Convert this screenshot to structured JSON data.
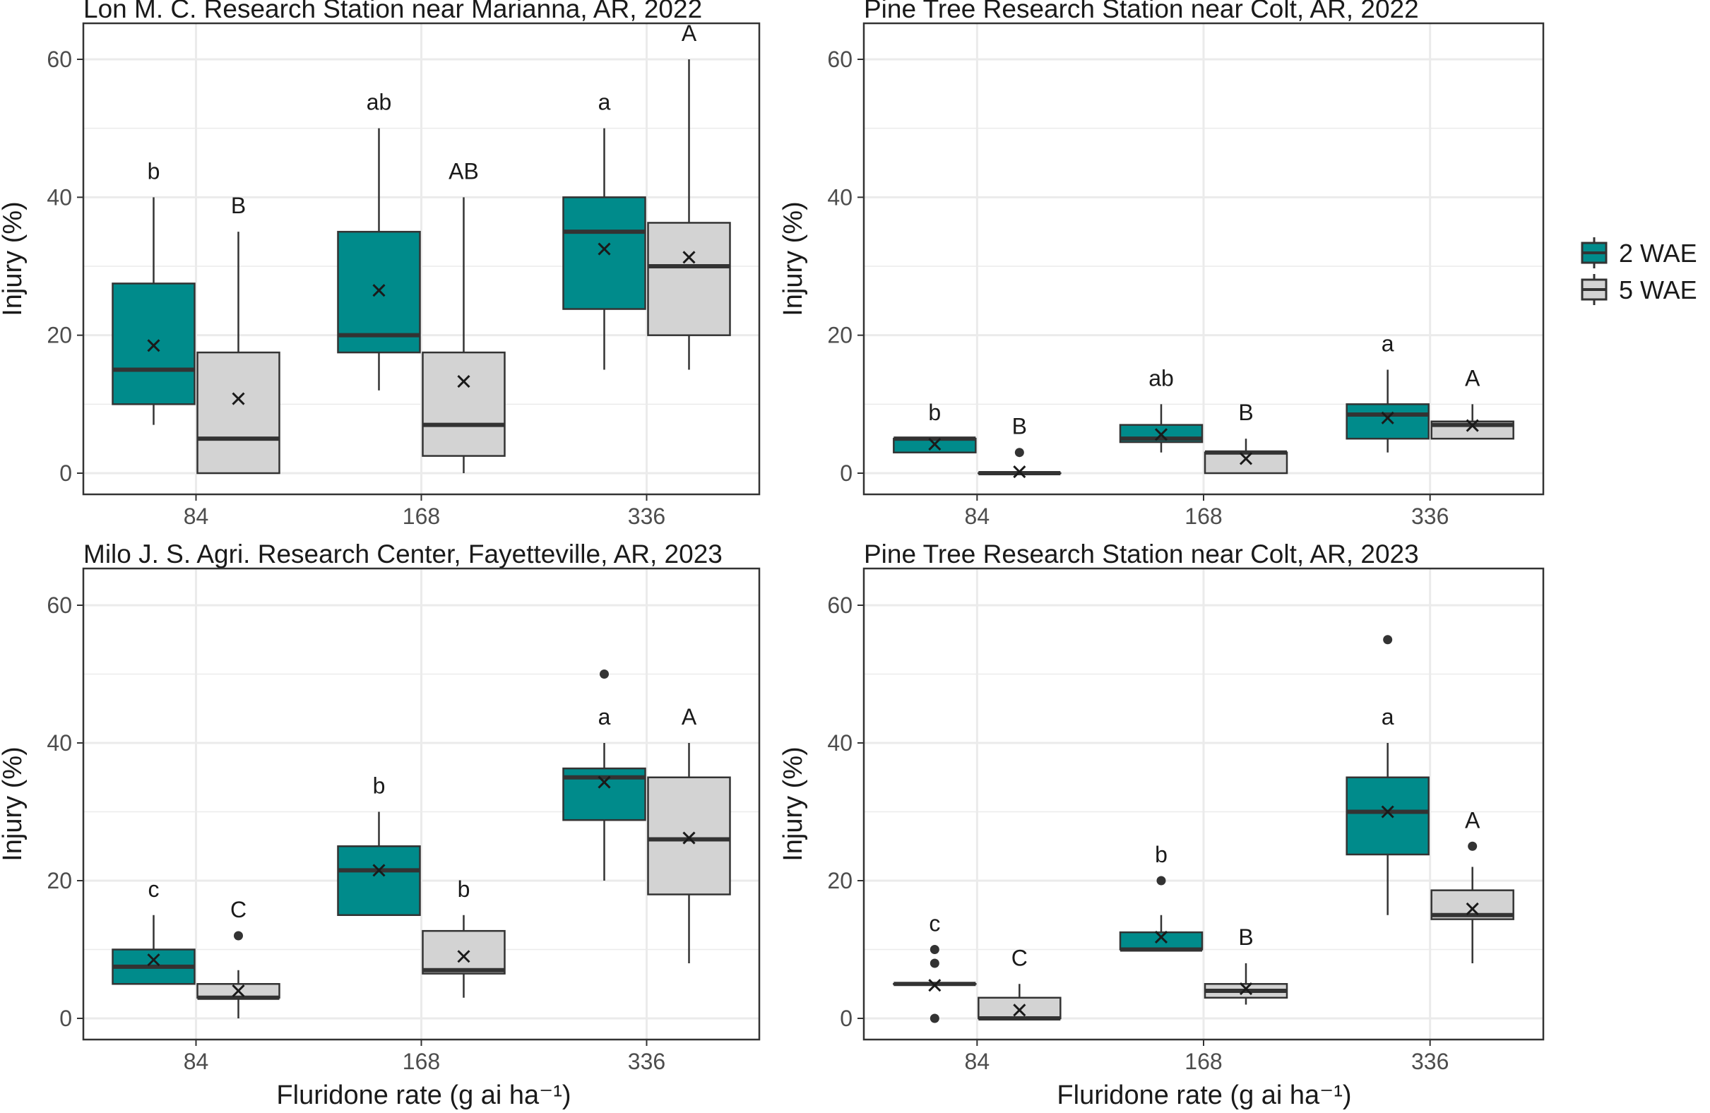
{
  "chart_data": {
    "type": "box",
    "xlabel": "Fluridone rate (g ai ha⁻¹)",
    "ylabel": "Injury (%)",
    "ylim": [
      0,
      60
    ],
    "yticks": [
      0,
      20,
      40,
      60
    ],
    "categories": [
      "84",
      "168",
      "336"
    ],
    "legend": {
      "position": "right",
      "entries": [
        "2 WAE",
        "5 WAE"
      ]
    },
    "colors": {
      "2 WAE": "#008b8b",
      "5 WAE": "#d3d3d3",
      "median": "#333333",
      "grid": "#ebebeb"
    },
    "grid": true,
    "panels": [
      {
        "title": "Lon M. C. Research Station near Marianna, AR, 2022",
        "boxes": [
          {
            "category": "84",
            "series": "2 WAE",
            "q1": 10,
            "median": 15,
            "q3": 27.5,
            "low": 7,
            "high": 40,
            "mean": 18.5,
            "outliers": [],
            "letter": "b"
          },
          {
            "category": "84",
            "series": "5 WAE",
            "q1": 0,
            "median": 5,
            "q3": 17.5,
            "low": 0,
            "high": 35,
            "mean": 10.8,
            "outliers": [],
            "letter": "B"
          },
          {
            "category": "168",
            "series": "2 WAE",
            "q1": 17.5,
            "median": 20,
            "q3": 35,
            "low": 12,
            "high": 50,
            "mean": 26.5,
            "outliers": [],
            "letter": "ab"
          },
          {
            "category": "168",
            "series": "5 WAE",
            "q1": 2.5,
            "median": 7,
            "q3": 17.5,
            "low": 0,
            "high": 40,
            "mean": 13.3,
            "outliers": [],
            "letter": "AB"
          },
          {
            "category": "336",
            "series": "2 WAE",
            "q1": 23.8,
            "median": 35,
            "q3": 40,
            "low": 15,
            "high": 50,
            "mean": 32.5,
            "outliers": [],
            "letter": "a"
          },
          {
            "category": "336",
            "series": "5 WAE",
            "q1": 20,
            "median": 30,
            "q3": 36.3,
            "low": 15,
            "high": 60,
            "mean": 31.3,
            "outliers": [],
            "letter": "A"
          }
        ]
      },
      {
        "title": "Pine Tree Research Station near Colt, AR, 2022",
        "boxes": [
          {
            "category": "84",
            "series": "2 WAE",
            "q1": 3,
            "median": 5,
            "q3": 5,
            "low": 3,
            "high": 5,
            "mean": 4.2,
            "outliers": [],
            "letter": "b"
          },
          {
            "category": "84",
            "series": "5 WAE",
            "q1": 0,
            "median": 0,
            "q3": 0,
            "low": 0,
            "high": 0,
            "mean": 0.2,
            "outliers": [
              3
            ],
            "letter": "B"
          },
          {
            "category": "168",
            "series": "2 WAE",
            "q1": 4.5,
            "median": 5,
            "q3": 7,
            "low": 3,
            "high": 10,
            "mean": 5.6,
            "outliers": [],
            "letter": "ab"
          },
          {
            "category": "168",
            "series": "5 WAE",
            "q1": 0,
            "median": 3,
            "q3": 3,
            "low": 0,
            "high": 5,
            "mean": 2.1,
            "outliers": [],
            "letter": "B"
          },
          {
            "category": "336",
            "series": "2 WAE",
            "q1": 5,
            "median": 8.5,
            "q3": 10,
            "low": 3,
            "high": 15,
            "mean": 8,
            "outliers": [],
            "letter": "a"
          },
          {
            "category": "336",
            "series": "5 WAE",
            "q1": 5,
            "median": 7,
            "q3": 7.5,
            "low": 5,
            "high": 10,
            "mean": 6.9,
            "outliers": [],
            "letter": "A"
          }
        ]
      },
      {
        "title": "Milo J. S. Agri. Research Center, Fayetteville, AR, 2023",
        "boxes": [
          {
            "category": "84",
            "series": "2 WAE",
            "q1": 5,
            "median": 7.5,
            "q3": 10,
            "low": 5,
            "high": 15,
            "mean": 8.5,
            "outliers": [],
            "letter": "c"
          },
          {
            "category": "84",
            "series": "5 WAE",
            "q1": 3,
            "median": 3,
            "q3": 5,
            "low": 0,
            "high": 7,
            "mean": 4,
            "outliers": [
              12
            ],
            "letter": "C"
          },
          {
            "category": "168",
            "series": "2 WAE",
            "q1": 15,
            "median": 21.5,
            "q3": 25,
            "low": 15,
            "high": 30,
            "mean": 21.5,
            "outliers": [],
            "letter": "b"
          },
          {
            "category": "168",
            "series": "5 WAE",
            "q1": 6.5,
            "median": 7,
            "q3": 12.7,
            "low": 3,
            "high": 15,
            "mean": 9,
            "outliers": [],
            "letter": "b"
          },
          {
            "category": "336",
            "series": "2 WAE",
            "q1": 28.8,
            "median": 35,
            "q3": 36.3,
            "low": 20,
            "high": 40,
            "mean": 34.3,
            "outliers": [
              50
            ],
            "letter": "a"
          },
          {
            "category": "336",
            "series": "5 WAE",
            "q1": 18,
            "median": 26,
            "q3": 35,
            "low": 8,
            "high": 40,
            "mean": 26.2,
            "outliers": [],
            "letter": "A"
          }
        ]
      },
      {
        "title": "Pine Tree Research Station near Colt, AR, 2023",
        "boxes": [
          {
            "category": "84",
            "series": "2 WAE",
            "q1": 5,
            "median": 5,
            "q3": 5,
            "low": 5,
            "high": 5,
            "mean": 4.8,
            "outliers": [
              0,
              8,
              10
            ],
            "letter": "c"
          },
          {
            "category": "84",
            "series": "5 WAE",
            "q1": 0,
            "median": 0,
            "q3": 3,
            "low": 0,
            "high": 5,
            "mean": 1.2,
            "outliers": [],
            "letter": "C"
          },
          {
            "category": "168",
            "series": "2 WAE",
            "q1": 10,
            "median": 10,
            "q3": 12.5,
            "low": 10,
            "high": 15,
            "mean": 11.8,
            "outliers": [
              20
            ],
            "letter": "b"
          },
          {
            "category": "168",
            "series": "5 WAE",
            "q1": 3,
            "median": 4,
            "q3": 5,
            "low": 2,
            "high": 8,
            "mean": 4.3,
            "outliers": [],
            "letter": "B"
          },
          {
            "category": "336",
            "series": "2 WAE",
            "q1": 23.8,
            "median": 30,
            "q3": 35,
            "low": 15,
            "high": 40,
            "mean": 30,
            "outliers": [
              55
            ],
            "letter": "a"
          },
          {
            "category": "336",
            "series": "5 WAE",
            "q1": 14.4,
            "median": 15,
            "q3": 18.6,
            "low": 8,
            "high": 22,
            "mean": 15.9,
            "outliers": [
              25
            ],
            "letter": "A"
          }
        ]
      }
    ]
  }
}
